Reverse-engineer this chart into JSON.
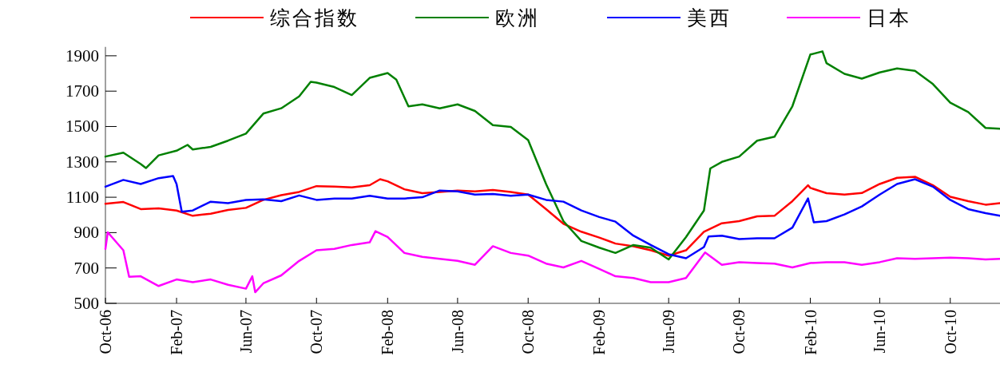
{
  "chart_data": {
    "type": "line",
    "legend": "top",
    "xlim": [
      "2006-10-01",
      "2010-12-26"
    ],
    "ylim": [
      500,
      1950
    ],
    "yticks": [
      500,
      700,
      900,
      1100,
      1300,
      1500,
      1700,
      1900
    ],
    "xticks": [
      {
        "value": "2006-10-01",
        "label": "Oct-06"
      },
      {
        "value": "2007-02-01",
        "label": "Feb-07"
      },
      {
        "value": "2007-06-01",
        "label": "Jun-07"
      },
      {
        "value": "2007-10-01",
        "label": "Oct-07"
      },
      {
        "value": "2008-02-01",
        "label": "Feb-08"
      },
      {
        "value": "2008-06-01",
        "label": "Jun-08"
      },
      {
        "value": "2008-10-01",
        "label": "Oct-08"
      },
      {
        "value": "2009-02-01",
        "label": "Feb-09"
      },
      {
        "value": "2009-06-01",
        "label": "Jun-09"
      },
      {
        "value": "2009-10-01",
        "label": "Oct-09"
      },
      {
        "value": "2010-02-01",
        "label": "Feb-10"
      },
      {
        "value": "2010-06-01",
        "label": "Jun-10"
      },
      {
        "value": "2010-10-01",
        "label": "Oct-10"
      }
    ],
    "series": [
      {
        "name": "综合指数",
        "color": "#ff0000",
        "x": [
          "2006-10-01",
          "2006-11-01",
          "2006-12-01",
          "2007-01-01",
          "2007-02-01",
          "2007-03-01",
          "2007-04-01",
          "2007-05-01",
          "2007-06-01",
          "2007-07-01",
          "2007-08-01",
          "2007-09-01",
          "2007-10-01",
          "2007-11-01",
          "2007-12-01",
          "2008-01-01",
          "2008-01-19",
          "2008-02-01",
          "2008-03-01",
          "2008-04-01",
          "2008-05-01",
          "2008-06-01",
          "2008-07-01",
          "2008-08-01",
          "2008-09-01",
          "2008-10-01",
          "2008-11-01",
          "2008-12-01",
          "2009-01-01",
          "2009-02-01",
          "2009-03-01",
          "2009-04-01",
          "2009-05-01",
          "2009-06-01",
          "2009-07-01",
          "2009-08-01",
          "2009-09-01",
          "2009-10-01",
          "2009-11-01",
          "2009-12-01",
          "2010-01-01",
          "2010-01-28",
          "2010-02-01",
          "2010-03-01",
          "2010-04-01",
          "2010-05-01",
          "2010-06-01",
          "2010-07-01",
          "2010-08-01",
          "2010-09-01",
          "2010-10-01",
          "2010-11-01",
          "2010-12-01",
          "2010-12-26"
        ],
        "values": [
          1063,
          1073,
          1033,
          1037,
          1025,
          995,
          1007,
          1028,
          1040,
          1085,
          1112,
          1130,
          1163,
          1160,
          1156,
          1168,
          1202,
          1190,
          1145,
          1123,
          1130,
          1138,
          1133,
          1141,
          1130,
          1115,
          1033,
          950,
          905,
          872,
          838,
          823,
          800,
          770,
          800,
          905,
          953,
          965,
          992,
          995,
          1078,
          1168,
          1153,
          1123,
          1115,
          1124,
          1175,
          1210,
          1216,
          1168,
          1103,
          1078,
          1058,
          1067
        ]
      },
      {
        "name": "欧洲",
        "color": "#008000",
        "x": [
          "2006-10-01",
          "2006-11-01",
          "2006-12-01",
          "2006-12-10",
          "2007-01-01",
          "2007-02-01",
          "2007-02-20",
          "2007-03-01",
          "2007-04-01",
          "2007-05-01",
          "2007-06-01",
          "2007-07-01",
          "2007-08-01",
          "2007-09-01",
          "2007-09-21",
          "2007-10-01",
          "2007-11-01",
          "2007-12-01",
          "2008-01-01",
          "2008-02-01",
          "2008-02-16",
          "2008-03-08",
          "2008-04-01",
          "2008-05-01",
          "2008-06-01",
          "2008-07-01",
          "2008-08-01",
          "2008-09-01",
          "2008-10-01",
          "2008-11-01",
          "2008-12-01",
          "2009-01-01",
          "2009-02-01",
          "2009-03-01",
          "2009-04-01",
          "2009-05-01",
          "2009-06-01",
          "2009-07-01",
          "2009-08-01",
          "2009-08-12",
          "2009-09-01",
          "2009-10-01",
          "2009-11-01",
          "2009-12-01",
          "2010-01-01",
          "2010-02-01",
          "2010-02-22",
          "2010-03-01",
          "2010-04-01",
          "2010-05-01",
          "2010-06-01",
          "2010-07-01",
          "2010-08-01",
          "2010-09-01",
          "2010-10-01",
          "2010-11-01",
          "2010-12-01",
          "2010-12-26"
        ],
        "values": [
          1330,
          1352,
          1288,
          1265,
          1337,
          1363,
          1396,
          1370,
          1385,
          1420,
          1460,
          1573,
          1603,
          1670,
          1753,
          1748,
          1723,
          1678,
          1775,
          1802,
          1765,
          1614,
          1625,
          1603,
          1625,
          1588,
          1508,
          1498,
          1423,
          1175,
          965,
          853,
          815,
          785,
          830,
          815,
          748,
          875,
          1025,
          1263,
          1300,
          1330,
          1420,
          1442,
          1615,
          1907,
          1925,
          1858,
          1798,
          1771,
          1806,
          1828,
          1815,
          1740,
          1635,
          1582,
          1492,
          1487
        ]
      },
      {
        "name": "美西",
        "color": "#0000ff",
        "x": [
          "2006-10-01",
          "2006-11-01",
          "2006-12-01",
          "2007-01-01",
          "2007-01-26",
          "2007-02-01",
          "2007-02-10",
          "2007-03-01",
          "2007-04-01",
          "2007-05-01",
          "2007-06-01",
          "2007-07-01",
          "2007-08-01",
          "2007-09-01",
          "2007-10-01",
          "2007-11-01",
          "2007-12-01",
          "2008-01-01",
          "2008-02-01",
          "2008-03-01",
          "2008-04-01",
          "2008-05-01",
          "2008-06-01",
          "2008-07-01",
          "2008-08-01",
          "2008-09-01",
          "2008-10-01",
          "2008-11-01",
          "2008-12-01",
          "2009-01-01",
          "2009-02-01",
          "2009-03-01",
          "2009-04-01",
          "2009-05-01",
          "2009-06-01",
          "2009-07-01",
          "2009-08-01",
          "2009-08-09",
          "2009-09-01",
          "2009-10-01",
          "2009-11-01",
          "2009-12-01",
          "2010-01-01",
          "2010-01-28",
          "2010-02-07",
          "2010-03-01",
          "2010-04-01",
          "2010-05-01",
          "2010-06-01",
          "2010-07-01",
          "2010-08-01",
          "2010-09-01",
          "2010-10-01",
          "2010-11-01",
          "2010-12-01",
          "2010-12-26"
        ],
        "values": [
          1160,
          1198,
          1175,
          1208,
          1220,
          1175,
          1018,
          1025,
          1075,
          1067,
          1085,
          1088,
          1078,
          1110,
          1085,
          1093,
          1093,
          1108,
          1093,
          1093,
          1100,
          1138,
          1133,
          1115,
          1118,
          1108,
          1115,
          1085,
          1075,
          1025,
          988,
          962,
          883,
          830,
          778,
          755,
          818,
          878,
          883,
          863,
          868,
          868,
          928,
          1093,
          958,
          965,
          1003,
          1048,
          1115,
          1175,
          1202,
          1160,
          1085,
          1033,
          1010,
          995
        ]
      },
      {
        "name": "日本",
        "color": "#ff00ff",
        "x": [
          "2006-10-01",
          "2006-10-05",
          "2006-11-01",
          "2006-11-11",
          "2006-12-01",
          "2007-01-01",
          "2007-02-01",
          "2007-03-01",
          "2007-04-01",
          "2007-05-01",
          "2007-06-01",
          "2007-06-12",
          "2007-06-17",
          "2007-07-01",
          "2007-08-01",
          "2007-09-01",
          "2007-10-01",
          "2007-11-01",
          "2007-12-01",
          "2008-01-01",
          "2008-01-11",
          "2008-02-01",
          "2008-03-01",
          "2008-04-01",
          "2008-05-01",
          "2008-06-01",
          "2008-07-01",
          "2008-08-01",
          "2008-09-01",
          "2008-10-01",
          "2008-11-01",
          "2008-12-01",
          "2009-01-01",
          "2009-02-01",
          "2009-03-01",
          "2009-04-01",
          "2009-05-01",
          "2009-06-01",
          "2009-07-01",
          "2009-08-03",
          "2009-09-01",
          "2009-10-01",
          "2009-11-01",
          "2009-12-01",
          "2010-01-01",
          "2010-02-01",
          "2010-03-01",
          "2010-04-01",
          "2010-05-01",
          "2010-06-01",
          "2010-07-01",
          "2010-08-01",
          "2010-09-01",
          "2010-10-01",
          "2010-11-01",
          "2010-12-01",
          "2010-12-26"
        ],
        "values": [
          808,
          902,
          800,
          650,
          653,
          598,
          635,
          620,
          635,
          605,
          583,
          653,
          563,
          613,
          658,
          740,
          800,
          808,
          830,
          845,
          908,
          875,
          785,
          763,
          752,
          740,
          718,
          823,
          785,
          770,
          725,
          703,
          740,
          695,
          653,
          643,
          620,
          620,
          643,
          788,
          718,
          733,
          728,
          725,
          703,
          728,
          733,
          733,
          718,
          733,
          755,
          752,
          755,
          758,
          755,
          748,
          752
        ]
      }
    ]
  }
}
